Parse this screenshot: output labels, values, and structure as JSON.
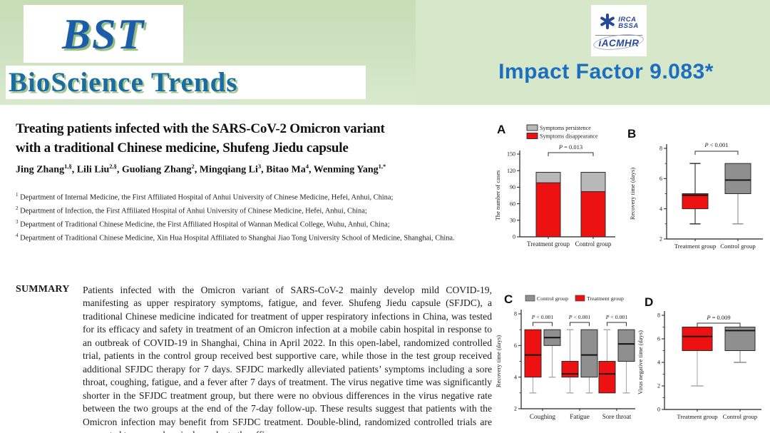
{
  "banner": {
    "logo_acronym": "BST",
    "logo_name": "BioScience Trends",
    "impact_factor": "Impact Factor 9.083*",
    "assoc": {
      "line1": "IRCA",
      "line2": "BSSA",
      "line3": "iACMHR"
    }
  },
  "article": {
    "title_line1": "Treating patients infected with the SARS-CoV-2 Omicron variant",
    "title_line2": "with a traditional Chinese medicine, Shufeng Jiedu capsule",
    "authors": [
      {
        "name": "Jing Zhang",
        "sup": "1,§"
      },
      {
        "name": "Lili Liu",
        "sup": "2,§"
      },
      {
        "name": "Guoliang Zhang",
        "sup": "2"
      },
      {
        "name": "Mingqiang Li",
        "sup": "3"
      },
      {
        "name": "Bitao Ma",
        "sup": "4"
      },
      {
        "name": "Wenming Yang",
        "sup": "1,*"
      }
    ],
    "affiliations": [
      {
        "sup": "1",
        "text": "Department of Internal Medicine, the First Affiliated Hospital of Anhui University of Chinese Medicine, Hefei, Anhui, China;"
      },
      {
        "sup": "2",
        "text": "Department of Infection, the First Affiliated Hospital of Anhui University of Chinese Medicine, Hefei, Anhui, China;"
      },
      {
        "sup": "3",
        "text": "Department of Traditional Chinese Medicine, the First Affiliated Hospital of Wannan Medical College, Wuhu, Anhui, China;"
      },
      {
        "sup": "4",
        "text": "Department of Traditional Chinese Medicine, Xin Hua Hospital Affiliated to Shanghai Jiao Tong University School of Medicine, Shanghai, China."
      }
    ],
    "summary_label": "SUMMARY",
    "summary_text": "Patients infected with the Omicron variant of SARS-CoV-2 mainly develop mild COVID-19, manifesting as upper respiratory symptoms, fatigue, and fever. Shufeng Jiedu capsule (SFJDC), a traditional Chinese medicine indicated for treatment of upper respiratory infections in China, was tested for its efficacy and safety in treatment of an Omicron infection at a mobile cabin hospital in response to an outbreak of COVID-19 in Shanghai, China in April 2022. In this open-label, randomized controlled trial, patients in the control group received best supportive care, while those in the test group received additional SFJDC therapy for 7 days. SFJDC markedly alleviated patients’ symptoms including a sore throat, coughing, fatigue, and a fever after 7 days of treatment. The virus negative time was significantly shorter in the SFJDC treatment group, but there were no obvious differences in the virus negative rate between the two groups at the end of the 7-day follow-up. These results suggest that patients with the Omicron infection may benefit from SFJDC treatment. Double-blind, randomized controlled trials are warranted to comprehensively evaluate the efficacy"
  },
  "colors": {
    "banner_green": "#cfe3c2",
    "brand_blue": "#1c5ca8",
    "impact_blue": "#1c6fc0",
    "assoc_navy": "#27479b",
    "bar_red": "#ee1111",
    "bar_gray_light": "#b8b8b8",
    "box_gray": "#8f8f8f"
  },
  "chart_data": [
    {
      "panel": "A",
      "type": "stacked-bar",
      "title": "",
      "categories": [
        "Treatment group",
        "Control group"
      ],
      "series": [
        {
          "name": "Symptoms disappearance",
          "color": "#ee1111",
          "values": [
            98,
            82
          ]
        },
        {
          "name": "Symptoms persistence",
          "color": "#b8b8b8",
          "values": [
            19,
            35
          ]
        }
      ],
      "legend": [
        {
          "label": "Symptoms persistence",
          "color": "#b8b8b8"
        },
        {
          "label": "Symptoms disappearance",
          "color": "#ee1111"
        }
      ],
      "p_label": "P = 0.013",
      "ylabel": "The number of cases",
      "ylim": [
        0,
        150
      ],
      "yticks": [
        0,
        30,
        60,
        90,
        120,
        150
      ],
      "minor_yticks": []
    },
    {
      "panel": "B",
      "type": "box",
      "categories": [
        "Treatment group",
        "Control group"
      ],
      "boxes": [
        {
          "group": "Treatment group",
          "color": "#ee1111",
          "low": 3,
          "q1": 4,
          "median": 4.9,
          "q3": 5,
          "high": 7
        },
        {
          "group": "Control group",
          "color": "#8f8f8f",
          "low": 3,
          "q1": 5,
          "median": 5.9,
          "q3": 7,
          "high": 7
        }
      ],
      "p_label": "P < 0.001",
      "ylabel": "Recovery time (days)",
      "ylim": [
        2,
        8
      ],
      "yticks": [
        2,
        4,
        6,
        8
      ],
      "minor_yticks": [
        3,
        5,
        7
      ]
    },
    {
      "panel": "C",
      "type": "box-grouped",
      "categories": [
        "Coughing",
        "Fatigue",
        "Sore throat"
      ],
      "legend": [
        {
          "label": "Control group",
          "color": "#8f8f8f"
        },
        {
          "label": "Treatment group",
          "color": "#ee1111"
        }
      ],
      "p_labels": [
        "P < 0.001",
        "P < 0.001",
        "P < 0.001"
      ],
      "series": [
        {
          "name": "Treatment group",
          "color": "#ee1111",
          "boxes": [
            {
              "low": 3,
              "q1": 4,
              "median": 5.4,
              "q3": 7,
              "high": 7
            },
            {
              "low": 3,
              "q1": 4,
              "median": 4.2,
              "q3": 5,
              "high": 7
            },
            {
              "low": 3,
              "q1": 3,
              "median": 4.2,
              "q3": 5,
              "high": 7
            }
          ]
        },
        {
          "name": "Control group",
          "color": "#8f8f8f",
          "boxes": [
            {
              "low": 4,
              "q1": 6,
              "median": 6.5,
              "q3": 7,
              "high": 7
            },
            {
              "low": 3,
              "q1": 4,
              "median": 5.4,
              "q3": 7,
              "high": 7
            },
            {
              "low": 3,
              "q1": 5,
              "median": 6.1,
              "q3": 7,
              "high": 7
            }
          ]
        }
      ],
      "ylabel": "Recovery time (days)",
      "ylim": [
        2,
        8
      ],
      "yticks": [
        2,
        4,
        6,
        8
      ],
      "minor_yticks": [
        3,
        5,
        7
      ]
    },
    {
      "panel": "D",
      "type": "box",
      "categories": [
        "Treatment group",
        "Control group"
      ],
      "boxes": [
        {
          "group": "Treatment group",
          "color": "#ee1111",
          "low": 2,
          "q1": 5,
          "median": 6.2,
          "q3": 7,
          "high": 7
        },
        {
          "group": "Control group",
          "color": "#8f8f8f",
          "low": 4,
          "q1": 5,
          "median": 6.7,
          "q3": 7,
          "high": 7
        }
      ],
      "p_label": "P = 0.009",
      "ylabel": "Virus negative time (days)",
      "ylim": [
        0,
        8
      ],
      "yticks": [
        0,
        2,
        4,
        6,
        8
      ],
      "minor_yticks": [
        1,
        3,
        5,
        7
      ]
    }
  ]
}
